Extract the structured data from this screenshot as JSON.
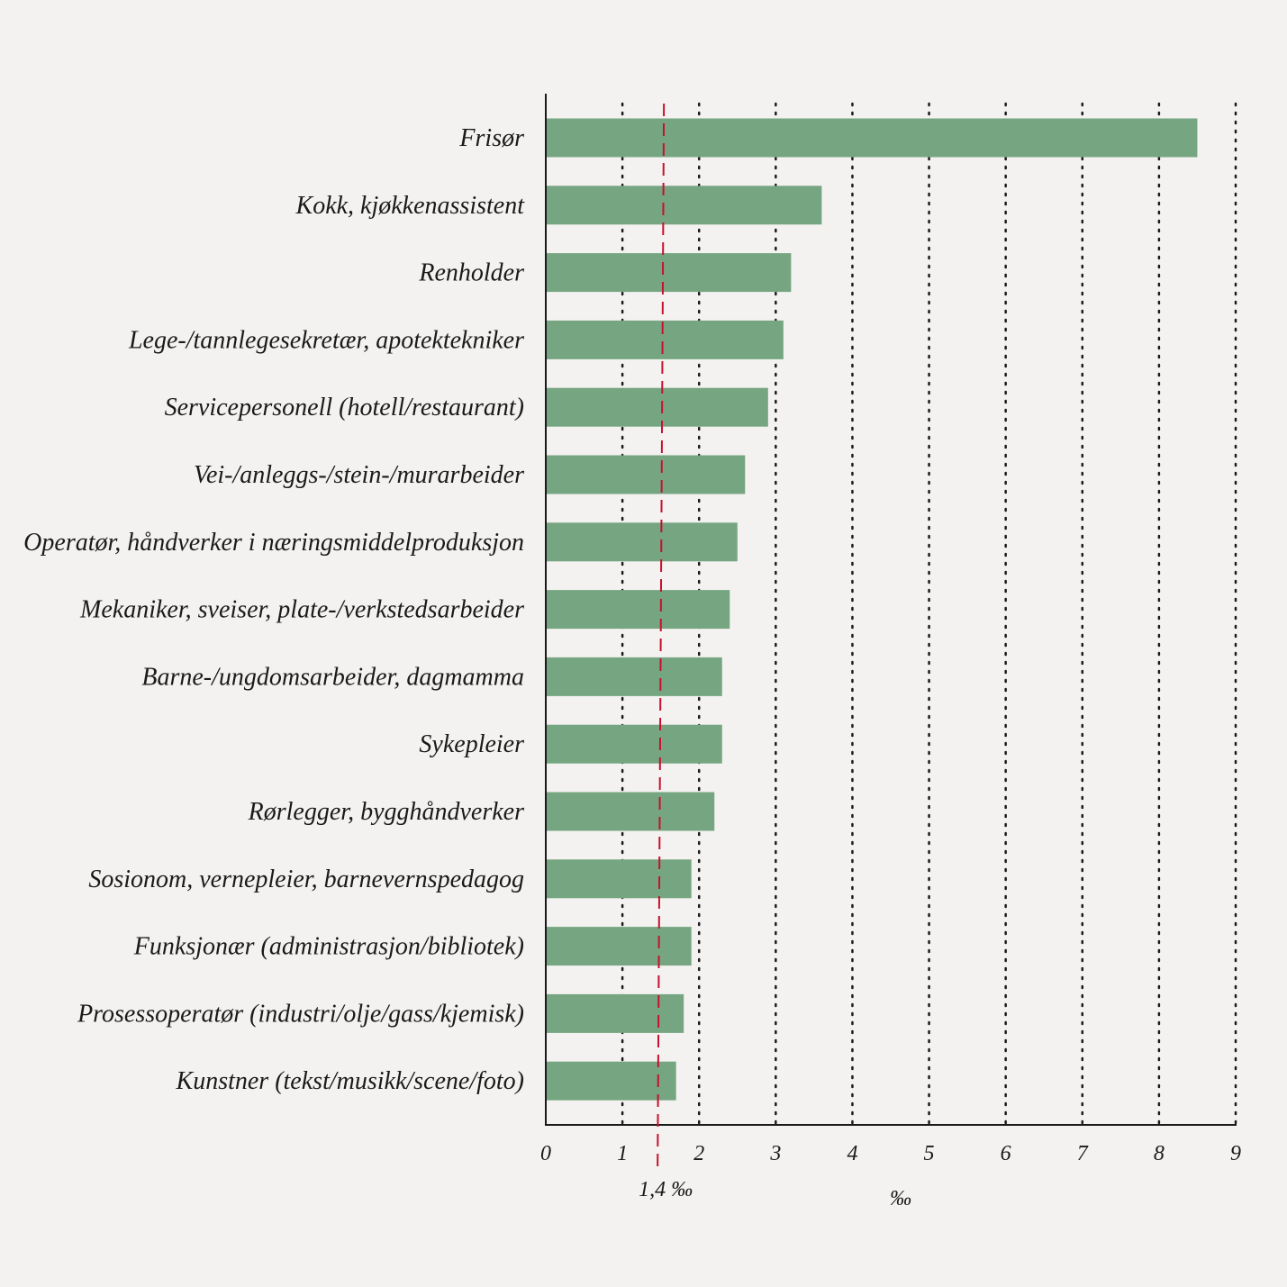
{
  "chart_data": {
    "type": "bar",
    "orientation": "horizontal",
    "title": "",
    "xlabel": "‰",
    "ylabel": "",
    "xlim": [
      0,
      9
    ],
    "ticks": [
      "0",
      "1",
      "2",
      "3",
      "4",
      "5",
      "6",
      "7",
      "8",
      "9"
    ],
    "grid": true,
    "categories": [
      "Frisør",
      "Kokk, kjøkkenassistent",
      "Renholder",
      "Lege-/tannlegesekretær, apotektekniker",
      "Servicepersonell (hotell/restaurant)",
      "Vei-/anleggs-/stein-/murarbeider",
      "Operatør, håndverker i næringsmiddelproduksjon",
      "Mekaniker, sveiser, plate-/verkstedsarbeider",
      "Barne-/ungdomsarbeider, dagmamma",
      "Sykepleier",
      "Rørlegger, bygghåndverker",
      "Sosionom, vernepleier, barnevernspedagog",
      "Funksjonær (administrasjon/bibliotek)",
      "Prosessoperatør (industri/olje/gass/kjemisk)",
      "Kunstner (tekst/musikk/scene/foto)"
    ],
    "values": [
      8.5,
      3.6,
      3.2,
      3.1,
      2.9,
      2.6,
      2.5,
      2.4,
      2.3,
      2.3,
      2.2,
      1.9,
      1.9,
      1.8,
      1.7
    ],
    "reference_line": {
      "value": 1.4,
      "label": "1,4 ‰",
      "color": "#c8102e"
    },
    "bar_color": "#76a681"
  }
}
